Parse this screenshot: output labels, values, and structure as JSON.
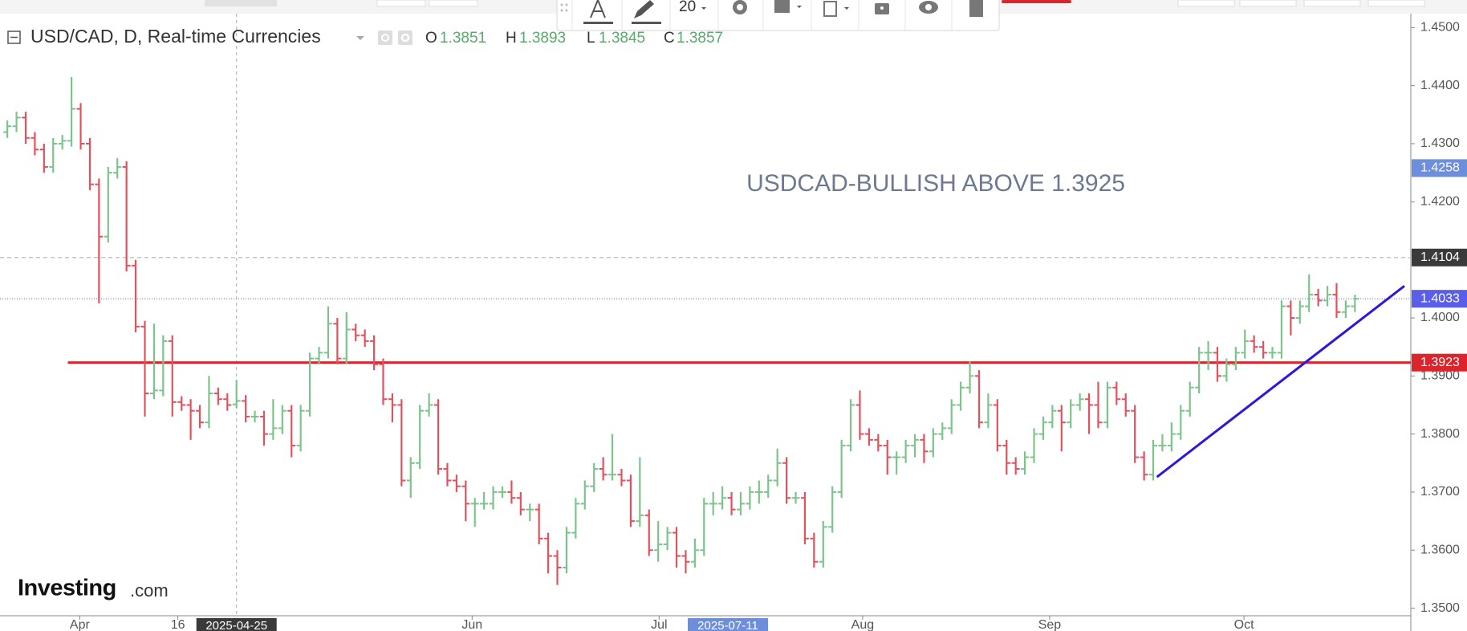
{
  "chart_data": {
    "type": "ohlc",
    "title": "USD/CAD, D, Real-time Currencies",
    "ohlc_labels": [
      "O",
      "H",
      "L",
      "C"
    ],
    "header_bar": 25,
    "annotation": "USDCAD-BULLISH ABOVE 1.3925",
    "logo": {
      "main": "Investing",
      "suffix": ".com"
    },
    "toolbar": {
      "font_size": 20
    },
    "up_color": "#7cc48c",
    "down_color": "#e0525e",
    "open": [
      1.432,
      1.433,
      1.4345,
      1.431,
      1.429,
      1.426,
      1.43,
      1.4305,
      1.436,
      1.43,
      1.423,
      1.414,
      1.425,
      1.426,
      1.409,
      1.3985,
      1.387,
      1.3875,
      1.396,
      1.3855,
      1.385,
      1.384,
      1.382,
      1.387,
      1.386,
      1.3851,
      1.3857,
      1.383,
      1.383,
      1.38,
      1.381,
      1.384,
      1.378,
      1.384,
      1.393,
      1.394,
      1.399,
      1.393,
      1.398,
      1.397,
      1.396,
      1.392,
      1.386,
      1.385,
      1.372,
      1.375,
      1.384,
      1.385,
      1.374,
      1.372,
      1.371,
      1.368,
      1.368,
      1.368,
      1.37,
      1.37,
      1.369,
      1.367,
      1.367,
      1.362,
      1.359,
      1.357,
      1.363,
      1.368,
      1.371,
      1.374,
      1.373,
      1.373,
      1.372,
      1.365,
      1.366,
      1.36,
      1.361,
      1.363,
      1.359,
      1.358,
      1.36,
      1.368,
      1.368,
      1.369,
      1.367,
      1.368,
      1.37,
      1.37,
      1.372,
      1.375,
      1.369,
      1.369,
      1.362,
      1.358,
      1.364,
      1.37,
      1.378,
      1.385,
      1.38,
      1.379,
      1.378,
      1.376,
      1.376,
      1.378,
      1.379,
      1.377,
      1.38,
      1.381,
      1.385,
      1.388,
      1.39,
      1.382,
      1.385,
      1.378,
      1.375,
      1.374,
      1.376,
      1.38,
      1.382,
      1.384,
      1.382,
      1.385,
      1.386,
      1.385,
      1.382,
      1.388,
      1.386,
      1.384,
      1.376,
      1.373,
      1.378,
      1.378,
      1.38,
      1.384,
      1.388,
      1.394,
      1.394,
      1.39,
      1.392,
      1.394,
      1.396,
      1.395,
      1.394,
      1.394,
      1.402,
      1.4,
      1.402,
      1.404,
      1.403,
      1.404,
      1.401,
      1.402
    ],
    "high": [
      1.434,
      1.4355,
      1.4355,
      1.432,
      1.43,
      1.431,
      1.4315,
      1.4415,
      1.437,
      1.431,
      1.424,
      1.426,
      1.4275,
      1.427,
      1.41,
      1.3995,
      1.399,
      1.397,
      1.397,
      1.3865,
      1.386,
      1.385,
      1.39,
      1.388,
      1.387,
      1.3893,
      1.3867,
      1.384,
      1.384,
      1.386,
      1.385,
      1.385,
      1.385,
      1.394,
      1.395,
      1.402,
      1.4,
      1.401,
      1.399,
      1.398,
      1.397,
      1.393,
      1.387,
      1.386,
      1.376,
      1.385,
      1.387,
      1.386,
      1.375,
      1.373,
      1.372,
      1.369,
      1.37,
      1.371,
      1.371,
      1.372,
      1.37,
      1.368,
      1.368,
      1.363,
      1.36,
      1.364,
      1.369,
      1.372,
      1.375,
      1.376,
      1.38,
      1.374,
      1.373,
      1.376,
      1.367,
      1.365,
      1.364,
      1.364,
      1.36,
      1.362,
      1.369,
      1.37,
      1.371,
      1.37,
      1.37,
      1.371,
      1.372,
      1.373,
      1.3775,
      1.376,
      1.37,
      1.37,
      1.363,
      1.365,
      1.371,
      1.379,
      1.386,
      1.3875,
      1.381,
      1.38,
      1.379,
      1.377,
      1.379,
      1.38,
      1.38,
      1.381,
      1.382,
      1.386,
      1.389,
      1.3925,
      1.391,
      1.387,
      1.386,
      1.379,
      1.376,
      1.377,
      1.381,
      1.383,
      1.385,
      1.385,
      1.386,
      1.387,
      1.387,
      1.389,
      1.389,
      1.389,
      1.387,
      1.385,
      1.377,
      1.379,
      1.38,
      1.382,
      1.385,
      1.389,
      1.395,
      1.396,
      1.395,
      1.393,
      1.395,
      1.398,
      1.397,
      1.396,
      1.395,
      1.403,
      1.403,
      1.403,
      1.4075,
      1.405,
      1.4055,
      1.406,
      1.403,
      1.404
    ],
    "low": [
      1.431,
      1.432,
      1.43,
      1.428,
      1.425,
      1.425,
      1.429,
      1.4295,
      1.429,
      1.422,
      1.4025,
      1.413,
      1.424,
      1.408,
      1.3975,
      1.383,
      1.386,
      1.3865,
      1.383,
      1.384,
      1.379,
      1.381,
      1.381,
      1.385,
      1.384,
      1.3845,
      1.382,
      1.382,
      1.378,
      1.379,
      1.38,
      1.376,
      1.377,
      1.383,
      1.392,
      1.393,
      1.392,
      1.392,
      1.396,
      1.395,
      1.391,
      1.385,
      1.382,
      1.371,
      1.369,
      1.374,
      1.383,
      1.373,
      1.371,
      1.37,
      1.365,
      1.364,
      1.367,
      1.367,
      1.369,
      1.368,
      1.366,
      1.365,
      1.361,
      1.356,
      1.354,
      1.356,
      1.362,
      1.367,
      1.37,
      1.372,
      1.372,
      1.371,
      1.364,
      1.364,
      1.359,
      1.358,
      1.36,
      1.357,
      1.356,
      1.357,
      1.359,
      1.366,
      1.367,
      1.366,
      1.366,
      1.367,
      1.368,
      1.369,
      1.371,
      1.368,
      1.368,
      1.361,
      1.357,
      1.357,
      1.363,
      1.369,
      1.377,
      1.379,
      1.378,
      1.377,
      1.373,
      1.373,
      1.375,
      1.376,
      1.375,
      1.376,
      1.379,
      1.38,
      1.384,
      1.387,
      1.381,
      1.381,
      1.377,
      1.373,
      1.373,
      1.373,
      1.375,
      1.379,
      1.381,
      1.377,
      1.381,
      1.384,
      1.38,
      1.381,
      1.381,
      1.385,
      1.383,
      1.375,
      1.372,
      1.372,
      1.377,
      1.377,
      1.379,
      1.383,
      1.387,
      1.391,
      1.389,
      1.389,
      1.391,
      1.393,
      1.394,
      1.393,
      1.393,
      1.393,
      1.397,
      1.399,
      1.401,
      1.402,
      1.402,
      1.4,
      1.4,
      1.401
    ],
    "close": [
      1.433,
      1.4345,
      1.431,
      1.429,
      1.426,
      1.43,
      1.4305,
      1.436,
      1.43,
      1.423,
      1.414,
      1.425,
      1.426,
      1.409,
      1.3985,
      1.387,
      1.3875,
      1.396,
      1.3855,
      1.385,
      1.384,
      1.382,
      1.387,
      1.386,
      1.385,
      1.3857,
      1.383,
      1.383,
      1.38,
      1.381,
      1.384,
      1.378,
      1.384,
      1.393,
      1.394,
      1.399,
      1.393,
      1.398,
      1.397,
      1.396,
      1.392,
      1.386,
      1.385,
      1.372,
      1.375,
      1.384,
      1.385,
      1.374,
      1.372,
      1.371,
      1.368,
      1.368,
      1.368,
      1.37,
      1.37,
      1.369,
      1.367,
      1.367,
      1.362,
      1.359,
      1.357,
      1.363,
      1.368,
      1.371,
      1.374,
      1.373,
      1.373,
      1.372,
      1.365,
      1.366,
      1.36,
      1.361,
      1.363,
      1.359,
      1.358,
      1.36,
      1.368,
      1.368,
      1.369,
      1.367,
      1.368,
      1.37,
      1.37,
      1.372,
      1.375,
      1.369,
      1.369,
      1.362,
      1.358,
      1.364,
      1.37,
      1.378,
      1.385,
      1.38,
      1.379,
      1.378,
      1.376,
      1.376,
      1.378,
      1.379,
      1.377,
      1.38,
      1.381,
      1.385,
      1.388,
      1.39,
      1.382,
      1.385,
      1.378,
      1.375,
      1.374,
      1.376,
      1.38,
      1.382,
      1.384,
      1.382,
      1.385,
      1.386,
      1.385,
      1.382,
      1.388,
      1.386,
      1.384,
      1.376,
      1.373,
      1.378,
      1.378,
      1.38,
      1.384,
      1.388,
      1.394,
      1.394,
      1.39,
      1.392,
      1.394,
      1.396,
      1.395,
      1.394,
      1.394,
      1.402,
      1.4,
      1.402,
      1.404,
      1.403,
      1.404,
      1.401,
      1.402,
      1.4033
    ],
    "xlim": [
      -0.8,
      153.1
    ],
    "xticks": [
      {
        "value": 7.9,
        "label": "Apr"
      },
      {
        "value": 18.6,
        "label": "16"
      },
      {
        "value": 50.7,
        "label": "Jun"
      },
      {
        "value": 71.1,
        "label": "Jul"
      },
      {
        "value": 93.3,
        "label": "Aug"
      },
      {
        "value": 113.7,
        "label": "Sep"
      },
      {
        "value": 134.9,
        "label": "Oct"
      }
    ],
    "crosshair_labels": [
      {
        "value": 25,
        "label": "2025-04-25",
        "color": "#3a3a3a",
        "line": true
      },
      {
        "value": 78.6,
        "label": "2025-07-11",
        "color": "#6d8edb",
        "line": false
      }
    ],
    "ylim": [
      1.3487,
      1.4524
    ],
    "yticks": [
      {
        "value": 1.35,
        "label": "1.3500"
      },
      {
        "value": 1.36,
        "label": "1.3600"
      },
      {
        "value": 1.37,
        "label": "1.3700"
      },
      {
        "value": 1.38,
        "label": "1.3800"
      },
      {
        "value": 1.39,
        "label": "1.3900"
      },
      {
        "value": 1.4,
        "label": "1.4000"
      },
      {
        "value": 1.42,
        "label": "1.4200"
      },
      {
        "value": 1.43,
        "label": "1.4300"
      },
      {
        "value": 1.44,
        "label": "1.4400"
      },
      {
        "value": 1.45,
        "label": "1.4500"
      }
    ],
    "grid": false,
    "levels": [
      {
        "value": 1.4258,
        "label_color": "#6d8edb",
        "line": "none"
      },
      {
        "value": 1.4104,
        "label_color": "#3a3a3a",
        "line": "dashed",
        "line_color": "#bbbbbb"
      },
      {
        "value": 1.4033,
        "label_color": "#5b5ee8",
        "line": "dotted",
        "line_color": "#7a86ee"
      },
      {
        "value": 1.3923,
        "label_color": "#d9252b",
        "line": "solid",
        "line_color": "#d9252b",
        "x_from": 6.6
      }
    ],
    "trendline": {
      "x": [
        125.4,
        152.4
      ],
      "y": [
        1.3726,
        1.4055
      ],
      "color": "#2b17e0"
    }
  }
}
